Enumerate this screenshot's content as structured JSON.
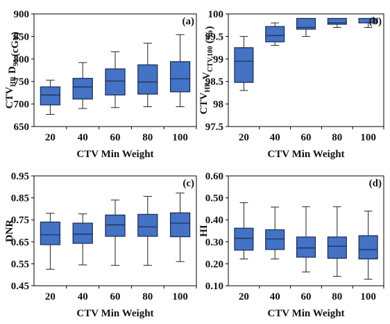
{
  "chart_data": [
    {
      "type": "box",
      "panel_label": "(a)",
      "ylabel_parts": [
        {
          "text": "CTV",
          "style": "normal"
        },
        {
          "text": "HR",
          "style": "sub"
        },
        {
          "text": " D",
          "style": "normal"
        },
        {
          "text": "90",
          "style": "sub"
        },
        {
          "text": " (cGy)",
          "style": "normal"
        }
      ],
      "xlabel": "CTV Min Weight",
      "categories": [
        "20",
        "40",
        "60",
        "80",
        "100"
      ],
      "ylim": [
        650,
        900
      ],
      "yticks": [
        "650",
        "700",
        "750",
        "800",
        "850",
        "900"
      ],
      "yticks_values": [
        650,
        700,
        750,
        800,
        850,
        900
      ],
      "boxes": [
        {
          "min": 677,
          "q1": 698,
          "median": 720,
          "q3": 738,
          "max": 753
        },
        {
          "min": 690,
          "q1": 711,
          "median": 738,
          "q3": 757,
          "max": 792
        },
        {
          "min": 692,
          "q1": 720,
          "median": 751,
          "q3": 778,
          "max": 816
        },
        {
          "min": 694,
          "q1": 722,
          "median": 749,
          "q3": 787,
          "max": 835
        },
        {
          "min": 694,
          "q1": 727,
          "median": 756,
          "q3": 794,
          "max": 854
        }
      ],
      "box_color": "#4472c4"
    },
    {
      "type": "box",
      "panel_label": "(b)",
      "ylabel_parts": [
        {
          "text": "CTV",
          "style": "normal"
        },
        {
          "text": "HR",
          "style": "sub"
        },
        {
          "text": " V",
          "style": "normal"
        },
        {
          "text": "CTV,100",
          "style": "sub"
        },
        {
          "text": " (%)",
          "style": "normal"
        }
      ],
      "xlabel": "CTV Min Weight",
      "categories": [
        "20",
        "40",
        "60",
        "80",
        "100"
      ],
      "ylim": [
        97.5,
        100
      ],
      "yticks": [
        "97.5",
        "98",
        "98.5",
        "99",
        "99.5",
        "100"
      ],
      "yticks_values": [
        97.5,
        98,
        98.5,
        99,
        99.5,
        100
      ],
      "boxes": [
        {
          "min": 98.3,
          "q1": 98.48,
          "median": 98.95,
          "q3": 99.25,
          "max": 99.5
        },
        {
          "min": 99.3,
          "q1": 99.38,
          "median": 99.52,
          "q3": 99.72,
          "max": 99.8
        },
        {
          "min": 99.5,
          "q1": 99.66,
          "median": 99.7,
          "q3": 99.9,
          "max": 99.9
        },
        {
          "min": 99.7,
          "q1": 99.77,
          "median": 99.8,
          "q3": 99.9,
          "max": 99.9
        },
        {
          "min": 99.7,
          "q1": 99.8,
          "median": 99.8,
          "q3": 99.9,
          "max": 99.9
        }
      ],
      "box_color": "#4472c4"
    },
    {
      "type": "box",
      "panel_label": "(c)",
      "ylabel_parts": [
        {
          "text": "DNR",
          "style": "normal"
        }
      ],
      "xlabel": "CTV Min Weight",
      "categories": [
        "20",
        "40",
        "60",
        "80",
        "100"
      ],
      "ylim": [
        0.45,
        0.95
      ],
      "yticks": [
        "0.45",
        "0.55",
        "0.65",
        "0.75",
        "0.85",
        "0.95"
      ],
      "yticks_values": [
        0.45,
        0.55,
        0.65,
        0.75,
        0.85,
        0.95
      ],
      "boxes": [
        {
          "min": 0.525,
          "q1": 0.637,
          "median": 0.682,
          "q3": 0.74,
          "max": 0.78
        },
        {
          "min": 0.545,
          "q1": 0.643,
          "median": 0.685,
          "q3": 0.735,
          "max": 0.777
        },
        {
          "min": 0.543,
          "q1": 0.675,
          "median": 0.727,
          "q3": 0.772,
          "max": 0.84
        },
        {
          "min": 0.543,
          "q1": 0.675,
          "median": 0.718,
          "q3": 0.775,
          "max": 0.857
        },
        {
          "min": 0.56,
          "q1": 0.673,
          "median": 0.735,
          "q3": 0.782,
          "max": 0.872
        }
      ],
      "box_color": "#4472c4"
    },
    {
      "type": "box",
      "panel_label": "(d)",
      "ylabel_parts": [
        {
          "text": "HI",
          "style": "normal"
        }
      ],
      "xlabel": "CTV Min Weight",
      "categories": [
        "20",
        "40",
        "60",
        "80",
        "100"
      ],
      "ylim": [
        0.1,
        0.6
      ],
      "yticks": [
        "0.10",
        "0.20",
        "0.30",
        "0.40",
        "0.50",
        "0.60"
      ],
      "yticks_values": [
        0.1,
        0.2,
        0.3,
        0.4,
        0.5,
        0.6
      ],
      "boxes": [
        {
          "min": 0.222,
          "q1": 0.262,
          "median": 0.316,
          "q3": 0.362,
          "max": 0.478
        },
        {
          "min": 0.222,
          "q1": 0.265,
          "median": 0.313,
          "q3": 0.355,
          "max": 0.458
        },
        {
          "min": 0.163,
          "q1": 0.23,
          "median": 0.272,
          "q3": 0.322,
          "max": 0.46
        },
        {
          "min": 0.143,
          "q1": 0.225,
          "median": 0.28,
          "q3": 0.322,
          "max": 0.46
        },
        {
          "min": 0.13,
          "q1": 0.222,
          "median": 0.265,
          "q3": 0.328,
          "max": 0.44
        }
      ],
      "box_color": "#4472c4"
    }
  ]
}
